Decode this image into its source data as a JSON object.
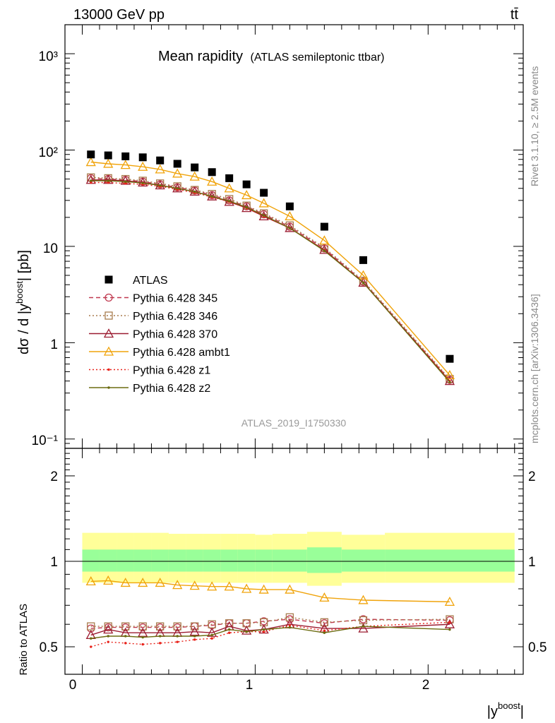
{
  "header": {
    "energy_label": "13000 GeV pp",
    "process_label": "tt̄"
  },
  "main_panel": {
    "title": "Mean rapidity",
    "subtitle": "(ATLAS semileptonic ttbar)",
    "ylabel_prefix": "dσ / d |y",
    "ylabel_sup": "boost",
    "ylabel_suffix": "| [pb]",
    "analysis_tag": "ATLAS_2019_I1750330",
    "side_label_rivet": "Rivet 3.1.10, ≥ 2.5M events",
    "side_label_mcplots": "mcplots.cern.ch [arXiv:1306.3436]",
    "ytick_labels": [
      "10³",
      "10²",
      "10",
      "1",
      "10⁻¹"
    ]
  },
  "ratio_panel": {
    "ylabel": "Ratio to ATLAS",
    "ytick_labels": [
      "0.5",
      "1",
      "2"
    ]
  },
  "xaxis": {
    "label_prefix": "|y",
    "label_sup": "boost",
    "label_suffix": "|",
    "tick_labels": [
      "0",
      "1",
      "2"
    ]
  },
  "legend": [
    {
      "label": "ATLAS",
      "color": "#000000",
      "marker": "filled-square",
      "line": "none"
    },
    {
      "label": "Pythia 6.428 345",
      "color": "#c0394f",
      "marker": "open-circle",
      "line": "dashed"
    },
    {
      "label": "Pythia 6.428 346",
      "color": "#a87c4e",
      "marker": "open-square",
      "line": "dotted"
    },
    {
      "label": "Pythia 6.428 370",
      "color": "#9b1c31",
      "marker": "open-triangle",
      "line": "solid"
    },
    {
      "label": "Pythia 6.428 ambt1",
      "color": "#f0a30a",
      "marker": "open-triangle",
      "line": "solid"
    },
    {
      "label": "Pythia 6.428 z1",
      "color": "#e8231b",
      "marker": "dot",
      "line": "dotted"
    },
    {
      "label": "Pythia 6.428 z2",
      "color": "#6b6b10",
      "marker": "dot",
      "line": "solid"
    }
  ],
  "chart_data": [
    {
      "type": "scatter",
      "panel": "main",
      "ylabel": "dσ / d |y^boost| [pb]",
      "xlabel": "|y^boost|",
      "xlim": [
        -0.1,
        2.55
      ],
      "ylim": [
        0.08,
        2000
      ],
      "yscale": "log",
      "x": [
        0.05,
        0.15,
        0.25,
        0.35,
        0.45,
        0.55,
        0.65,
        0.75,
        0.85,
        0.95,
        1.05,
        1.2,
        1.4,
        1.625,
        2.125
      ],
      "series": [
        {
          "name": "ATLAS",
          "values": [
            90,
            88,
            86,
            84,
            78,
            72,
            66,
            59,
            51,
            44,
            36,
            26,
            16,
            7.2,
            0.68
          ]
        },
        {
          "name": "Pythia 6.428 345",
          "values": [
            51,
            50,
            49,
            47,
            44,
            41,
            38,
            34,
            30,
            26,
            21.5,
            16,
            9.5,
            4.3,
            0.41
          ]
        },
        {
          "name": "Pythia 6.428 346",
          "values": [
            52,
            51,
            50,
            48,
            45,
            42,
            38.5,
            35,
            31,
            26.5,
            22,
            16.5,
            9.7,
            4.4,
            0.42
          ]
        },
        {
          "name": "Pythia 6.428 370",
          "values": [
            49,
            49,
            48,
            46,
            43,
            40,
            37,
            33,
            29,
            25,
            20.5,
            15.5,
            9.2,
            4.2,
            0.4
          ]
        },
        {
          "name": "Pythia 6.428 ambt1",
          "values": [
            75,
            72,
            70,
            67,
            63,
            57,
            53,
            47,
            40,
            34,
            28,
            20.5,
            11.5,
            5.0,
            0.46
          ]
        },
        {
          "name": "Pythia 6.428 z1",
          "values": [
            46,
            46,
            45,
            44,
            42,
            39,
            36,
            32.5,
            29,
            25,
            20.5,
            15.5,
            9.1,
            4.2,
            0.4
          ]
        },
        {
          "name": "Pythia 6.428 z2",
          "values": [
            48,
            48,
            47,
            45.5,
            43,
            40,
            37,
            33,
            29.5,
            25.5,
            21,
            15.5,
            9.0,
            4.2,
            0.39
          ]
        }
      ]
    },
    {
      "type": "line",
      "panel": "ratio",
      "ylabel": "Ratio to ATLAS",
      "xlabel": "|y^boost|",
      "xlim": [
        -0.1,
        2.55
      ],
      "ylim": [
        0.4,
        2.5
      ],
      "yscale": "log",
      "bins": [
        [
          0.0,
          0.1
        ],
        [
          0.1,
          0.2
        ],
        [
          0.2,
          0.3
        ],
        [
          0.3,
          0.4
        ],
        [
          0.4,
          0.5
        ],
        [
          0.5,
          0.6
        ],
        [
          0.6,
          0.7
        ],
        [
          0.7,
          0.8
        ],
        [
          0.8,
          0.9
        ],
        [
          0.9,
          1.0
        ],
        [
          1.0,
          1.1
        ],
        [
          1.1,
          1.3
        ],
        [
          1.3,
          1.5
        ],
        [
          1.5,
          1.75
        ],
        [
          1.75,
          2.5
        ]
      ],
      "band_outer": [
        [
          0.84,
          1.26
        ],
        [
          0.84,
          1.26
        ],
        [
          0.84,
          1.26
        ],
        [
          0.84,
          1.26
        ],
        [
          0.84,
          1.26
        ],
        [
          0.84,
          1.25
        ],
        [
          0.84,
          1.25
        ],
        [
          0.84,
          1.25
        ],
        [
          0.84,
          1.25
        ],
        [
          0.84,
          1.25
        ],
        [
          0.84,
          1.24
        ],
        [
          0.84,
          1.25
        ],
        [
          0.82,
          1.27
        ],
        [
          0.84,
          1.24
        ],
        [
          0.84,
          1.26
        ]
      ],
      "band_inner": [
        [
          0.92,
          1.1
        ],
        [
          0.92,
          1.1
        ],
        [
          0.92,
          1.1
        ],
        [
          0.92,
          1.1
        ],
        [
          0.92,
          1.1
        ],
        [
          0.92,
          1.1
        ],
        [
          0.92,
          1.1
        ],
        [
          0.92,
          1.1
        ],
        [
          0.92,
          1.1
        ],
        [
          0.92,
          1.1
        ],
        [
          0.92,
          1.1
        ],
        [
          0.92,
          1.1
        ],
        [
          0.91,
          1.12
        ],
        [
          0.92,
          1.1
        ],
        [
          0.92,
          1.1
        ]
      ],
      "x": [
        0.05,
        0.15,
        0.25,
        0.35,
        0.45,
        0.55,
        0.65,
        0.75,
        0.85,
        0.95,
        1.05,
        1.2,
        1.4,
        1.625,
        2.125
      ],
      "series": [
        {
          "name": "Pythia 6.428 345",
          "values": [
            0.58,
            0.585,
            0.585,
            0.585,
            0.585,
            0.585,
            0.59,
            0.595,
            0.605,
            0.605,
            0.615,
            0.625,
            0.605,
            0.625,
            0.62
          ]
        },
        {
          "name": "Pythia 6.428 346",
          "values": [
            0.59,
            0.59,
            0.59,
            0.59,
            0.59,
            0.59,
            0.59,
            0.6,
            0.605,
            0.605,
            0.61,
            0.635,
            0.61,
            0.62,
            0.625
          ]
        },
        {
          "name": "Pythia 6.428 370",
          "values": [
            0.55,
            0.575,
            0.56,
            0.56,
            0.56,
            0.56,
            0.565,
            0.56,
            0.59,
            0.57,
            0.575,
            0.6,
            0.58,
            0.58,
            0.6
          ]
        },
        {
          "name": "Pythia 6.428 ambt1",
          "values": [
            0.85,
            0.855,
            0.84,
            0.84,
            0.84,
            0.825,
            0.82,
            0.815,
            0.815,
            0.8,
            0.795,
            0.795,
            0.745,
            0.73,
            0.72
          ]
        },
        {
          "name": "Pythia 6.428 z1",
          "values": [
            0.5,
            0.52,
            0.515,
            0.51,
            0.515,
            0.52,
            0.53,
            0.535,
            0.56,
            0.565,
            0.565,
            0.595,
            0.57,
            0.59,
            0.61
          ]
        },
        {
          "name": "Pythia 6.428 z2",
          "values": [
            0.535,
            0.545,
            0.545,
            0.54,
            0.545,
            0.545,
            0.545,
            0.55,
            0.575,
            0.565,
            0.575,
            0.585,
            0.56,
            0.59,
            0.575
          ]
        }
      ]
    }
  ]
}
